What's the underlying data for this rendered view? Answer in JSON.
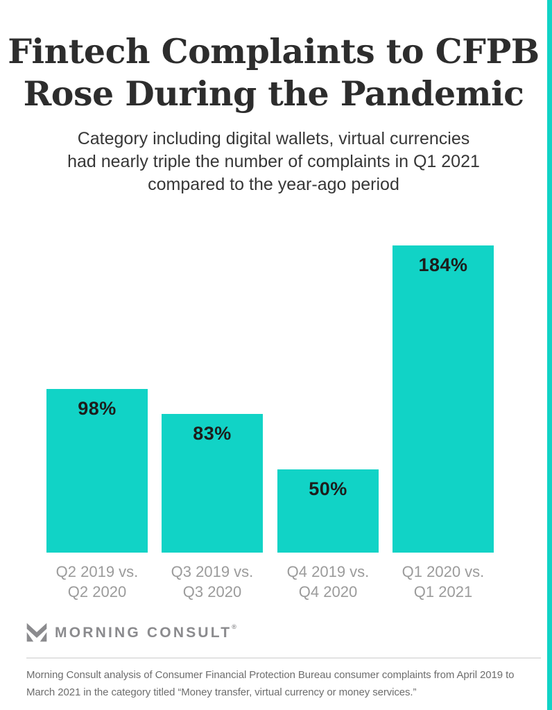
{
  "page": {
    "background_color": "#ffffff",
    "accent_color": "#11d3c6"
  },
  "header": {
    "title_lines": [
      "Fintech Complaints to CFPB",
      "Rose During the Pandemic"
    ],
    "subtitle_lines": [
      "Category including digital wallets, virtual currencies",
      "had nearly triple the number of complaints in Q1 2021",
      "compared to the year-ago period"
    ]
  },
  "chart_data": {
    "type": "bar",
    "title": "Fintech Complaints to CFPB Rose During the Pandemic",
    "categories": [
      [
        "Q2 2019 vs.",
        "Q2 2020"
      ],
      [
        "Q3 2019 vs.",
        "Q3 2020"
      ],
      [
        "Q4 2019 vs.",
        "Q4 2020"
      ],
      [
        "Q1 2020 vs.",
        "Q1 2021"
      ]
    ],
    "values": [
      98,
      83,
      50,
      184
    ],
    "value_labels": [
      "98%",
      "83%",
      "50%",
      "184%"
    ],
    "xlabel": "",
    "ylabel": "",
    "ylim": [
      0,
      184
    ],
    "grid": false,
    "legend": false,
    "bar_color": "#11d3c6",
    "value_label_color": "#1d1d1b",
    "axis_label_color": "#9b9b9b"
  },
  "footer": {
    "logo_text": "MORNING CONSULT",
    "logo_registered": "®",
    "logo_icon": "morning-consult-m-icon",
    "source_text": "Morning Consult analysis of Consumer Financial Protection Bureau consumer complaints from April 2019 to March 2021 in the category titled “Money transfer, virtual currency or money services.”"
  }
}
